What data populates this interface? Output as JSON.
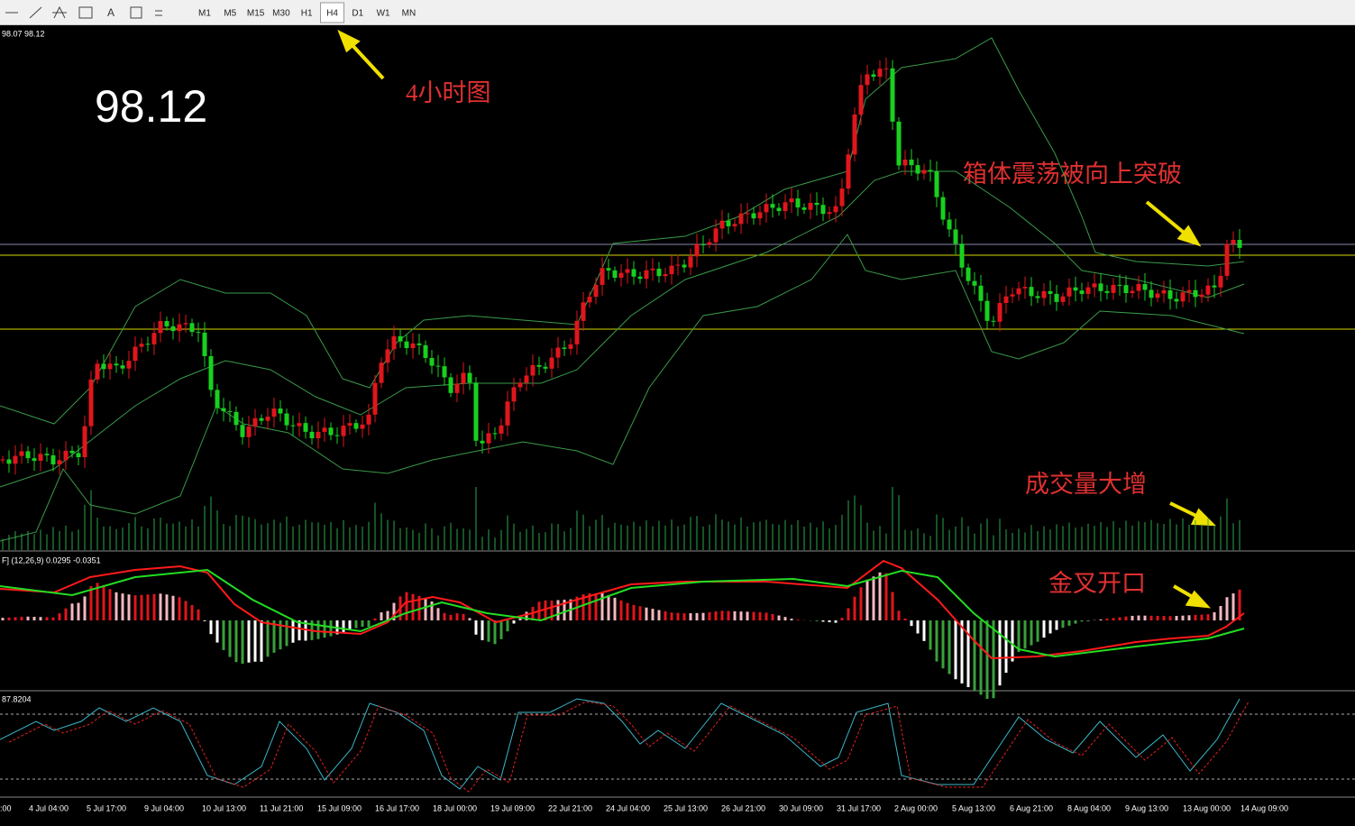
{
  "toolbar": {
    "tools": [
      "A"
    ],
    "timeframes": [
      "M1",
      "M5",
      "M15",
      "M30",
      "H1",
      "H4",
      "D1",
      "W1",
      "MN"
    ],
    "active": "H4"
  },
  "chart": {
    "info": "98.07 98.12",
    "price": "98.12",
    "annotations": [
      "4小时图",
      "箱体震荡被向上突破",
      "成交量大增",
      "金叉开口"
    ],
    "macd_label": "F] (12,26,9) 0.0295 -0.0351",
    "stoch_label": "87.8204",
    "time_labels": [
      ":00",
      "4 Jul 04:00",
      "5 Jul 17:00",
      "9 Jul 04:00",
      "10 Jul 13:00",
      "11 Jul 21:00",
      "15 Jul 09:00",
      "16 Jul 17:00",
      "18 Jul 00:00",
      "19 Jul 09:00",
      "22 Jul 21:00",
      "24 Jul 04:00",
      "25 Jul 13:00",
      "26 Jul 21:00",
      "30 Jul 09:00",
      "31 Jul 17:00",
      "2 Aug 00:00",
      "5 Aug 13:00",
      "6 Aug 21:00",
      "8 Aug 04:00",
      "9 Aug 13:00",
      "13 Aug 00:00",
      "14 Aug 09:00"
    ]
  }
}
